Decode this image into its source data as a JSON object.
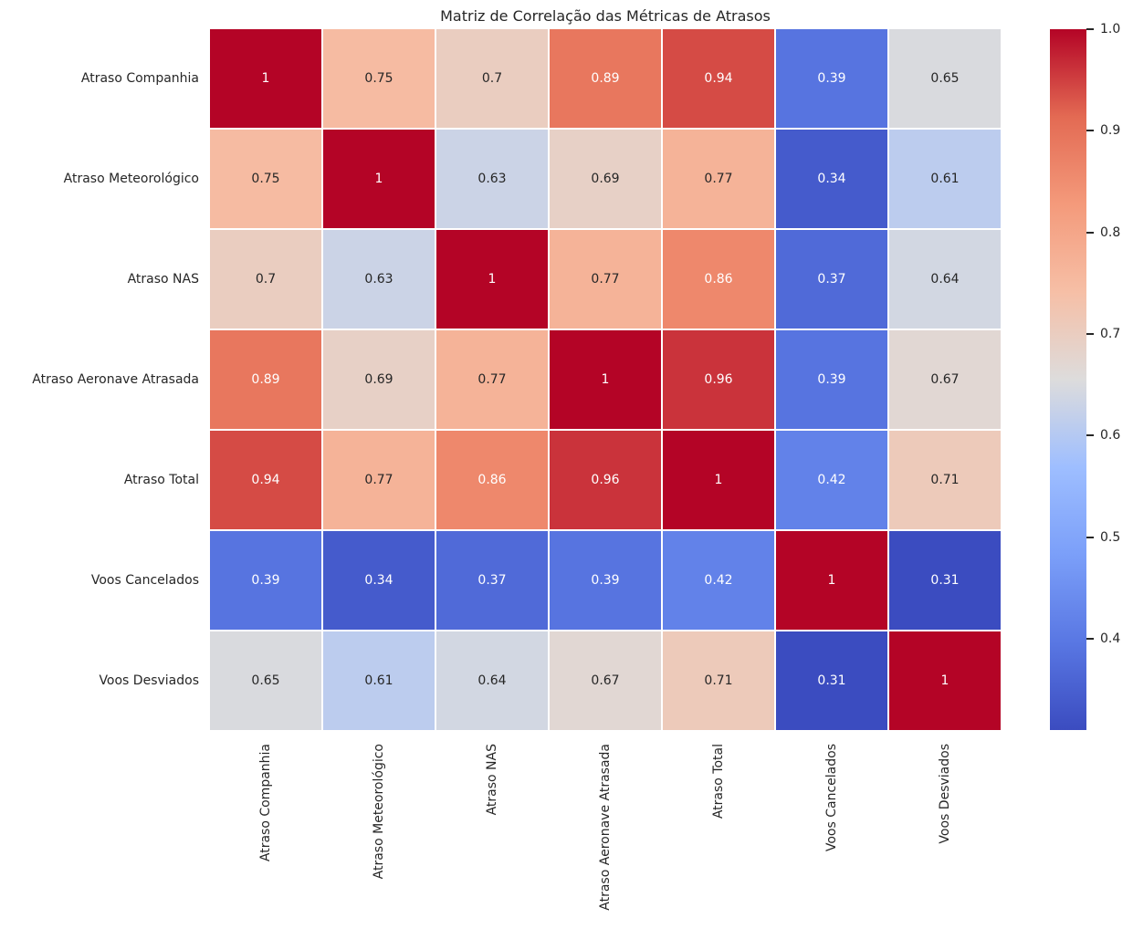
{
  "chart_data": {
    "type": "heatmap",
    "title": "Matriz de Correlação das Métricas de Atrasos",
    "categories": [
      "Atraso Companhia",
      "Atraso Meteorológico",
      "Atraso NAS",
      "Atraso Aeronave Atrasada",
      "Atraso Total",
      "Voos Cancelados",
      "Voos Desviados"
    ],
    "matrix": [
      [
        1,
        0.75,
        0.7,
        0.89,
        0.94,
        0.39,
        0.65
      ],
      [
        0.75,
        1,
        0.63,
        0.69,
        0.77,
        0.34,
        0.61
      ],
      [
        0.7,
        0.63,
        1,
        0.77,
        0.86,
        0.37,
        0.64
      ],
      [
        0.89,
        0.69,
        0.77,
        1,
        0.96,
        0.39,
        0.67
      ],
      [
        0.94,
        0.77,
        0.86,
        0.96,
        1,
        0.42,
        0.71
      ],
      [
        0.39,
        0.34,
        0.37,
        0.39,
        0.42,
        1,
        0.31
      ],
      [
        0.65,
        0.61,
        0.64,
        0.67,
        0.71,
        0.31,
        1
      ]
    ],
    "annotated": true,
    "colormap": "coolwarm",
    "vmin": 0.31,
    "vmax": 1.0,
    "colorbar_position": "right",
    "colorbar_tick_labels": [
      "1.0",
      "0.9",
      "0.8",
      "0.7",
      "0.6",
      "0.5",
      "0.4"
    ],
    "grid": false
  },
  "style": {
    "background": "#ffffff",
    "text_color": "#262626",
    "annot_light": "#ffffff",
    "cell_line_color": "#ffffff",
    "coolwarm_stops": [
      {
        "t": 0.0,
        "rgb": [
          59,
          76,
          192
        ]
      },
      {
        "t": 0.125,
        "rgb": [
          89,
          119,
          227
        ]
      },
      {
        "t": 0.25,
        "rgb": [
          123,
          159,
          249
        ]
      },
      {
        "t": 0.375,
        "rgb": [
          158,
          190,
          255
        ]
      },
      {
        "t": 0.5,
        "rgb": [
          221,
          220,
          220
        ]
      },
      {
        "t": 0.625,
        "rgb": [
          246,
          191,
          166
        ]
      },
      {
        "t": 0.75,
        "rgb": [
          244,
          154,
          123
        ]
      },
      {
        "t": 0.875,
        "rgb": [
          227,
          106,
          83
        ]
      },
      {
        "t": 1.0,
        "rgb": [
          180,
          4,
          38
        ]
      }
    ]
  }
}
